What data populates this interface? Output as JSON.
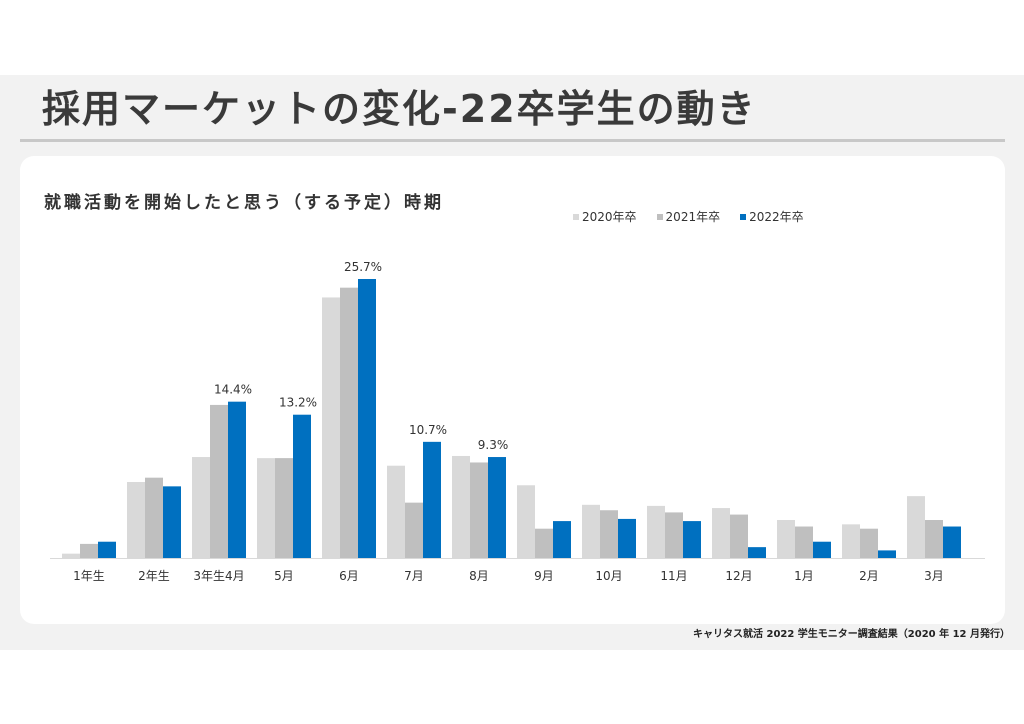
{
  "title": "採用マーケットの変化-22卒学生の動き",
  "source_note": "キャリタス就活 2022 学生モニター調査結果（2020 年 12 月発行）",
  "colors": {
    "s2020": "#d9d9d9",
    "s2021": "#bfbfbf",
    "s2022": "#0070c0"
  },
  "chart_data": {
    "type": "bar",
    "title": "就職活動を開始したと思う（する予定）時期",
    "categories": [
      "1年生",
      "2年生",
      "3年生4月",
      "5月",
      "6月",
      "7月",
      "8月",
      "9月",
      "10月",
      "11月",
      "12月",
      "1月",
      "2月",
      "3月"
    ],
    "series": [
      {
        "name": "2020年卒",
        "values": [
          0.4,
          7.0,
          9.3,
          9.2,
          24.0,
          8.5,
          9.4,
          6.7,
          4.9,
          4.8,
          4.6,
          3.5,
          3.1,
          5.7
        ]
      },
      {
        "name": "2021年卒",
        "values": [
          1.3,
          7.4,
          14.1,
          9.2,
          24.9,
          5.1,
          8.8,
          2.7,
          4.4,
          4.2,
          4.0,
          2.9,
          2.7,
          3.5
        ]
      },
      {
        "name": "2022年卒",
        "values": [
          1.5,
          6.6,
          14.4,
          13.2,
          25.7,
          10.7,
          9.3,
          3.4,
          3.6,
          3.4,
          1.0,
          1.5,
          0.7,
          2.9
        ]
      }
    ],
    "data_labels": [
      "",
      "",
      "14.4%",
      "13.2%",
      "25.7%",
      "10.7%",
      "9.3%",
      "",
      "",
      "",
      "",
      "",
      "",
      ""
    ],
    "ylim": [
      0,
      25.7
    ],
    "legend_position": "top-right",
    "grid": false
  }
}
